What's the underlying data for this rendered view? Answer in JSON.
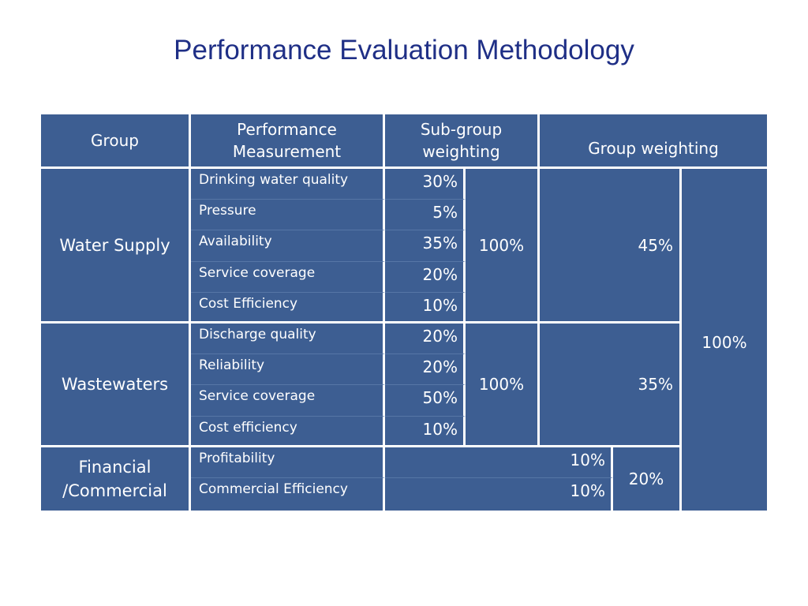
{
  "title": "Performance Evaluation Methodology",
  "headers": {
    "group": "Group",
    "measurement": "Performance Measurement",
    "subgroup_weighting": "Sub-group weighting",
    "group_weighting": "Group weighting"
  },
  "groups": [
    {
      "name": "Water Supply",
      "rows": [
        {
          "measurement": "Drinking water quality",
          "weight": "30%"
        },
        {
          "measurement": "Pressure",
          "weight": "5%"
        },
        {
          "measurement": "Availability",
          "weight": "35%"
        },
        {
          "measurement": "Service coverage",
          "weight": "20%"
        },
        {
          "measurement": "Cost Efficiency",
          "weight": "10%"
        }
      ],
      "subgroup_total": "100%",
      "group_weight": "45%"
    },
    {
      "name": "Wastewaters",
      "rows": [
        {
          "measurement": "Discharge quality",
          "weight": "20%"
        },
        {
          "measurement": "Reliability",
          "weight": "20%"
        },
        {
          "measurement": "Service coverage",
          "weight": "50%"
        },
        {
          "measurement": "Cost efficiency",
          "weight": "10%"
        }
      ],
      "subgroup_total": "100%",
      "group_weight": "35%"
    },
    {
      "name": "Financial /Commercial",
      "rows": [
        {
          "measurement": "Profitability",
          "weight": "10%"
        },
        {
          "measurement": "Commercial Efficiency",
          "weight": "10%"
        }
      ],
      "group_weight": "20%"
    }
  ],
  "total": "100%"
}
